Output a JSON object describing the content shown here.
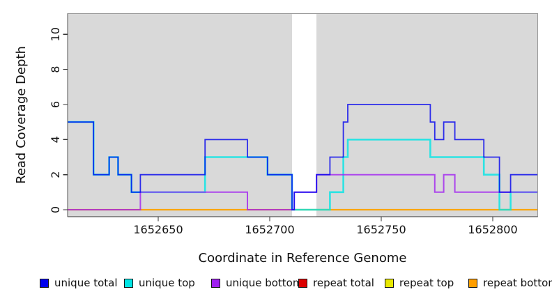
{
  "chart_data": {
    "type": "line",
    "step": true,
    "title": "",
    "xlabel": "Coordinate in Reference Genome",
    "ylabel": "Read Coverage Depth",
    "xlim": [
      1652609,
      1652820
    ],
    "ylim": [
      0,
      11
    ],
    "xticks": [
      1652650,
      1652700,
      1652750,
      1652800
    ],
    "yticks": [
      0,
      2,
      4,
      6,
      8,
      10
    ],
    "plot_background": "#d9d9d9",
    "box_color": "#999999",
    "axis_color": "#333333",
    "masked_region": {
      "from": 1652710,
      "to": 1652721,
      "color": "#ffffff"
    },
    "legend_position": "bottom",
    "grid": false,
    "series": [
      {
        "name": "repeat total",
        "color": "#dc0000",
        "points": [
          [
            1652609,
            0
          ]
        ]
      },
      {
        "name": "repeat top",
        "color": "#e8e800",
        "points": [
          [
            1652609,
            0
          ]
        ]
      },
      {
        "name": "repeat bottom",
        "color": "#ff9e00",
        "points": [
          [
            1652609,
            0
          ]
        ]
      },
      {
        "name": "unique top",
        "color": "#00e5e5",
        "points": [
          [
            1652609,
            5
          ],
          [
            1652621,
            2
          ],
          [
            1652628,
            3
          ],
          [
            1652632,
            2
          ],
          [
            1652638,
            1
          ],
          [
            1652671,
            3
          ],
          [
            1652699,
            2
          ],
          [
            1652710,
            0
          ],
          [
            1652727,
            1
          ],
          [
            1652733,
            3
          ],
          [
            1652735,
            4
          ],
          [
            1652772,
            3
          ],
          [
            1652796,
            2
          ],
          [
            1652803,
            0
          ],
          [
            1652808,
            1
          ]
        ]
      },
      {
        "name": "unique bottom",
        "color": "#a020f0",
        "points": [
          [
            1652609,
            0
          ],
          [
            1652642,
            1
          ],
          [
            1652690,
            0
          ],
          [
            1652711,
            1
          ],
          [
            1652721,
            2
          ],
          [
            1652774,
            1
          ],
          [
            1652778,
            2
          ],
          [
            1652783,
            1
          ]
        ]
      },
      {
        "name": "unique total",
        "color": "#0000ee",
        "points": [
          [
            1652609,
            5
          ],
          [
            1652621,
            2
          ],
          [
            1652628,
            3
          ],
          [
            1652632,
            2
          ],
          [
            1652638,
            1
          ],
          [
            1652642,
            2
          ],
          [
            1652671,
            4
          ],
          [
            1652690,
            3
          ],
          [
            1652699,
            2
          ],
          [
            1652710,
            0
          ],
          [
            1652711,
            1
          ],
          [
            1652721,
            2
          ],
          [
            1652727,
            3
          ],
          [
            1652733,
            5
          ],
          [
            1652735,
            6
          ],
          [
            1652772,
            5
          ],
          [
            1652774,
            4
          ],
          [
            1652778,
            5
          ],
          [
            1652783,
            4
          ],
          [
            1652796,
            3
          ],
          [
            1652803,
            1
          ],
          [
            1652808,
            2
          ]
        ]
      }
    ]
  },
  "legend": {
    "items": [
      {
        "label": "unique total",
        "color": "#0000ee"
      },
      {
        "label": "unique top",
        "color": "#00e5e5"
      },
      {
        "label": "unique bottom",
        "color": "#a020f0"
      },
      {
        "label": "repeat total",
        "color": "#dc0000"
      },
      {
        "label": "repeat top",
        "color": "#e8e800"
      },
      {
        "label": "repeat bottom",
        "color": "#ff9e00"
      }
    ]
  }
}
